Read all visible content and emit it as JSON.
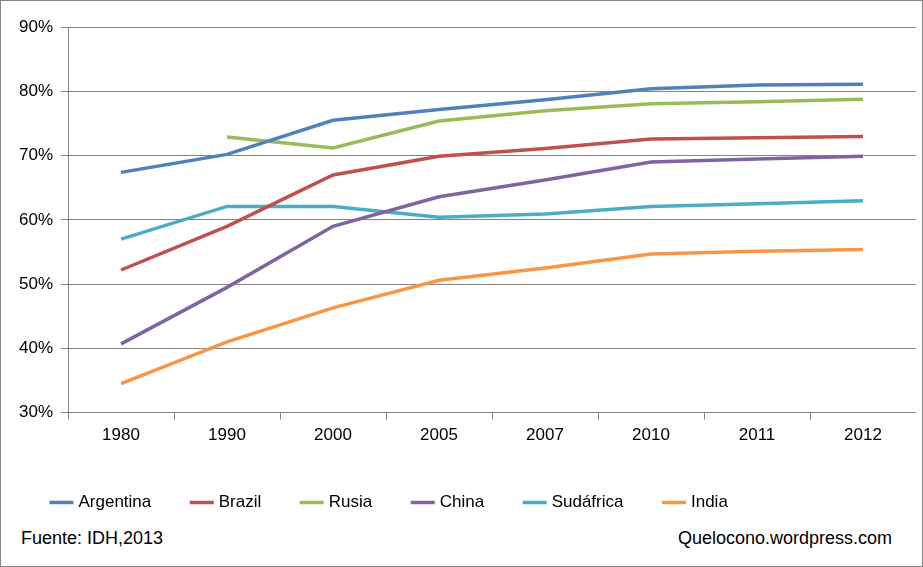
{
  "chart_data": {
    "type": "line",
    "categories": [
      "1980",
      "1990",
      "2000",
      "2005",
      "2007",
      "2010",
      "2011",
      "2012"
    ],
    "series": [
      {
        "name": "Argentina",
        "color": "#4f81bd",
        "values": [
          67.4,
          70.2,
          75.5,
          77.2,
          78.7,
          80.4,
          81.0,
          81.1
        ]
      },
      {
        "name": "Brazil",
        "color": "#c0504d",
        "values": [
          52.2,
          59.0,
          67.0,
          69.9,
          71.1,
          72.6,
          72.8,
          73.0
        ]
      },
      {
        "name": "Rusia",
        "color": "#9bbb59",
        "values": [
          null,
          72.9,
          71.2,
          75.4,
          77.0,
          78.1,
          78.4,
          78.8
        ]
      },
      {
        "name": "China",
        "color": "#8064a2",
        "values": [
          40.7,
          49.5,
          59.0,
          63.6,
          66.2,
          69.0,
          69.5,
          69.9
        ]
      },
      {
        "name": "Sudáfrica",
        "color": "#4bacc6",
        "values": [
          57.0,
          62.1,
          62.1,
          60.4,
          60.9,
          62.1,
          62.5,
          63.0
        ]
      },
      {
        "name": "India",
        "color": "#f79646",
        "values": [
          34.5,
          41.0,
          46.3,
          50.6,
          52.5,
          54.7,
          55.1,
          55.4
        ]
      }
    ],
    "ylim": [
      30,
      90
    ],
    "yticks": [
      {
        "value": 30,
        "label": "30%"
      },
      {
        "value": 40,
        "label": "40%"
      },
      {
        "value": 50,
        "label": "50%"
      },
      {
        "value": 60,
        "label": "60%"
      },
      {
        "value": 70,
        "label": "70%"
      },
      {
        "value": 80,
        "label": "80%"
      },
      {
        "value": 90,
        "label": "90%"
      }
    ],
    "grid": true,
    "legend": "bottom",
    "annotations": [
      "Fuente: IDH,2013",
      "Quelocono.wordpress.com"
    ]
  }
}
